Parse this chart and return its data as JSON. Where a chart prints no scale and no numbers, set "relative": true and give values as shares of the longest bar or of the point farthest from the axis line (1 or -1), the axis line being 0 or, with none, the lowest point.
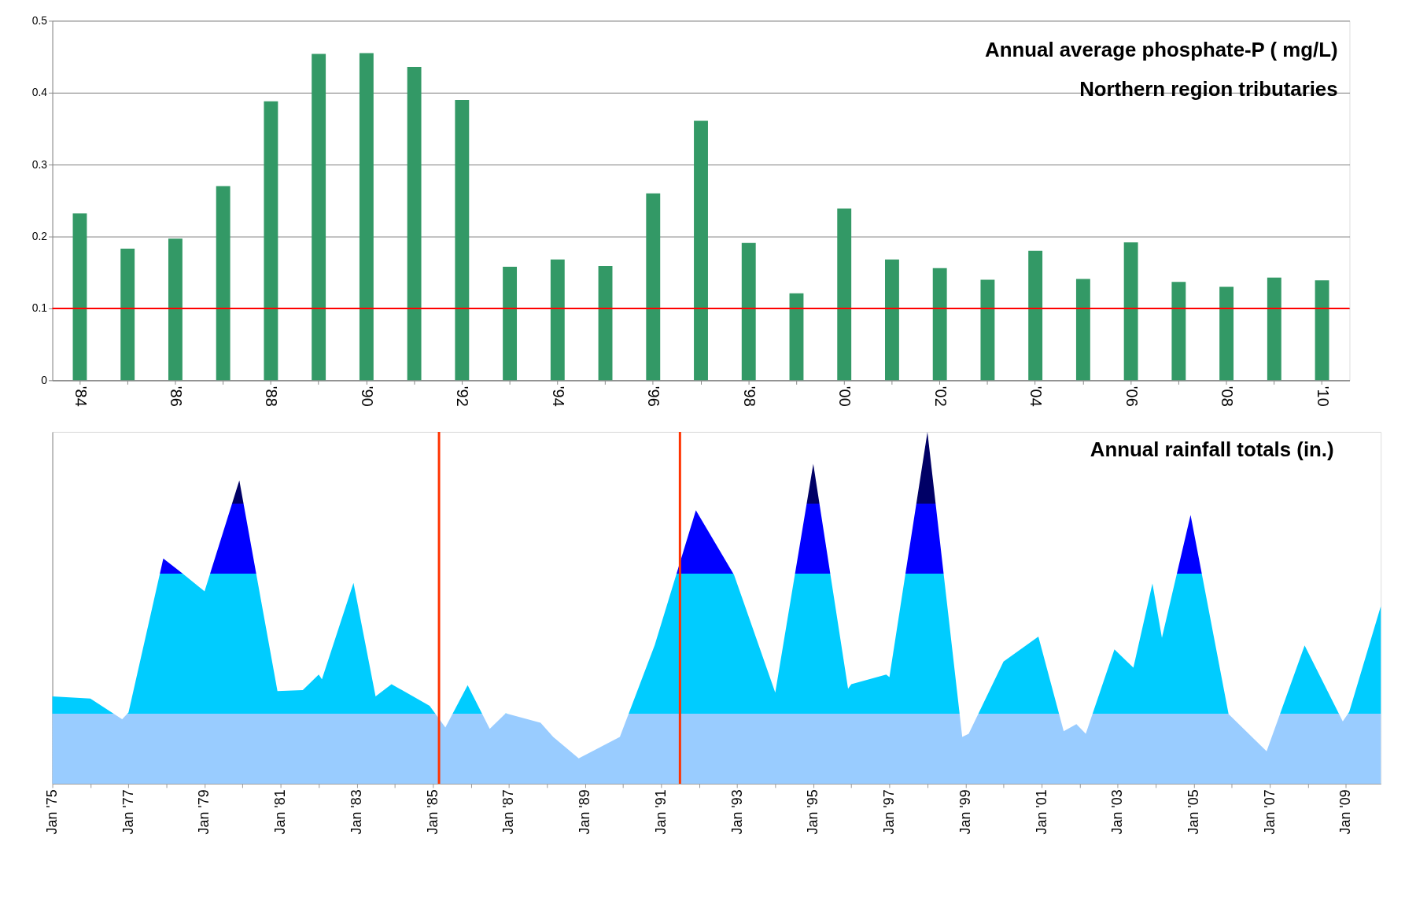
{
  "chart_data": [
    {
      "type": "bar",
      "title": "Annual average phosphate-P ( mg/L)",
      "categories": [
        "'84",
        null,
        "'86",
        null,
        "'88",
        null,
        "'90",
        null,
        "'92",
        null,
        "'94",
        null,
        "'96",
        null,
        "'98",
        null,
        "'00",
        null,
        "'02",
        null,
        "'04",
        null,
        "'06",
        null,
        "'08",
        null,
        "'10"
      ],
      "values": [
        0.232,
        0.183,
        0.197,
        0.27,
        0.388,
        0.454,
        0.455,
        0.436,
        0.39,
        0.158,
        0.168,
        0.159,
        0.26,
        0.361,
        0.191,
        0.121,
        0.239,
        0.168,
        0.156,
        0.14,
        0.18,
        0.141,
        0.192,
        0.137,
        0.13,
        0.143,
        0.139
      ],
      "color": "#339966",
      "ylim": [
        0,
        0.5
      ],
      "yticks": [
        0,
        0.1,
        0.2,
        0.3,
        0.4,
        0.5
      ],
      "grid": "y",
      "ref_lines": [
        {
          "axis": "y",
          "value": 0.1,
          "color": "#ff0000"
        }
      ],
      "annotations": [
        "Northern region tributaries"
      ]
    },
    {
      "type": "area",
      "title": "Annual rainfall totals (in.)",
      "relative": true,
      "series": [
        {
          "color": "#00ccff",
          "x": [
            "1975-01",
            "1976-01",
            "1976-11",
            "1977-01",
            "1977-12",
            "1978-06",
            "1979-01",
            "1979-12",
            "1980-12",
            "1981-08",
            "1982-01",
            "1982-02",
            "1982-12",
            "1983-07",
            "1983-12",
            "1984-12",
            "1985-05",
            "1985-12",
            "1986-07",
            "1986-12",
            "1987-11",
            "1988-03",
            "1988-11",
            "1989-12",
            "1990-11",
            "1991-12",
            "1992-12",
            "1994-01",
            "1995-01",
            "1995-12",
            "1996-01",
            "1996-12",
            "1997-01",
            "1998-01",
            "1998-12",
            "1999-02",
            "2000-01",
            "2000-12",
            "2001-08",
            "2001-12",
            "2002-03",
            "2002-12",
            "2003-06",
            "2003-12",
            "2004-03",
            "2004-12",
            "2005-12",
            "2006-12",
            "2007-12",
            "2008-12",
            "2009-02",
            "2009-12"
          ],
          "values": [
            0.248,
            0.242,
            0.183,
            0.202,
            0.64,
            0.598,
            0.547,
            0.862,
            0.263,
            0.266,
            0.31,
            0.297,
            0.571,
            0.248,
            0.283,
            0.221,
            0.16,
            0.28,
            0.156,
            0.2,
            0.173,
            0.133,
            0.072,
            0.133,
            0.394,
            0.777,
            0.594,
            0.259,
            0.909,
            0.27,
            0.283,
            0.31,
            0.303,
            1.0,
            0.133,
            0.142,
            0.347,
            0.418,
            0.149,
            0.169,
            0.142,
            0.382,
            0.33,
            0.569,
            0.415,
            0.764,
            0.198,
            0.092,
            0.393,
            0.177,
            0.204,
            0.504
          ]
        }
      ],
      "xlim": [
        "1975-01",
        "2009-12"
      ],
      "xticks": [
        {
          "value": "1975-01",
          "label": "Jan '75"
        },
        {
          "value": "1976-01",
          "label": null
        },
        {
          "value": "1977-01",
          "label": "Jan '77"
        },
        {
          "value": "1978-01",
          "label": null
        },
        {
          "value": "1979-01",
          "label": "Jan '79"
        },
        {
          "value": "1980-01",
          "label": null
        },
        {
          "value": "1981-01",
          "label": "Jan '81"
        },
        {
          "value": "1982-01",
          "label": null
        },
        {
          "value": "1983-01",
          "label": "Jan '83"
        },
        {
          "value": "1984-01",
          "label": null
        },
        {
          "value": "1985-01",
          "label": "Jan '85"
        },
        {
          "value": "1986-01",
          "label": null
        },
        {
          "value": "1987-01",
          "label": "Jan '87"
        },
        {
          "value": "1988-01",
          "label": null
        },
        {
          "value": "1989-01",
          "label": "Jan '89"
        },
        {
          "value": "1990-01",
          "label": null
        },
        {
          "value": "1991-01",
          "label": "Jan '91"
        },
        {
          "value": "1992-01",
          "label": null
        },
        {
          "value": "1993-01",
          "label": "Jan '93"
        },
        {
          "value": "1994-01",
          "label": null
        },
        {
          "value": "1995-01",
          "label": "Jan '95"
        },
        {
          "value": "1996-01",
          "label": null
        },
        {
          "value": "1997-01",
          "label": "Jan '97"
        },
        {
          "value": "1998-01",
          "label": null
        },
        {
          "value": "1999-01",
          "label": "Jan '99"
        },
        {
          "value": "2000-01",
          "label": null
        },
        {
          "value": "2001-01",
          "label": "Jan '01"
        },
        {
          "value": "2002-01",
          "label": null
        },
        {
          "value": "2003-01",
          "label": "Jan '03"
        },
        {
          "value": "2004-01",
          "label": null
        },
        {
          "value": "2005-01",
          "label": "Jan '05"
        },
        {
          "value": "2006-01",
          "label": null
        },
        {
          "value": "2007-01",
          "label": "Jan '07"
        },
        {
          "value": "2008-01",
          "label": null
        },
        {
          "value": "2009-01",
          "label": "Jan '09"
        }
      ],
      "ref_lines": [
        {
          "axis": "x",
          "value": "1985-03",
          "color": "#ff3300"
        },
        {
          "axis": "x",
          "value": "1991-07",
          "color": "#ff3300"
        }
      ]
    }
  ]
}
